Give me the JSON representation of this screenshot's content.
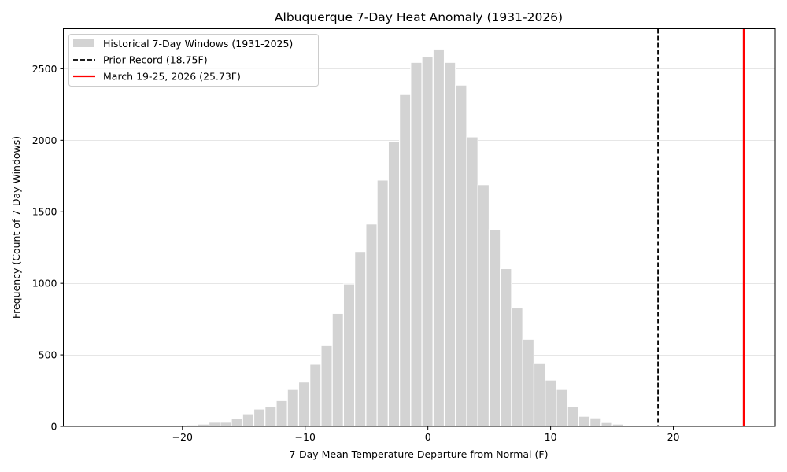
{
  "chart_data": {
    "type": "bar",
    "subtype": "histogram",
    "title": "Albuquerque 7-Day Heat Anomaly (1931-2026)",
    "xlabel": "7-Day Mean Temperature Departure from Normal (F)",
    "ylabel": "Frequency (Count of 7-Day Windows)",
    "xlim": [
      -29.7,
      28.3
    ],
    "ylim": [
      0,
      2780
    ],
    "xticks": [
      -20,
      -10,
      0,
      10,
      20
    ],
    "xtick_labels": [
      "−20",
      "−10",
      "0",
      "10",
      "20"
    ],
    "yticks": [
      0,
      500,
      1000,
      1500,
      2000,
      2500
    ],
    "ytick_labels": [
      "0",
      "500",
      "1000",
      "1500",
      "2000",
      "2500"
    ],
    "grid": {
      "y": true,
      "x": false
    },
    "legend_position": "upper left",
    "bin_start": -19.66,
    "bin_width": 0.913,
    "bin_centers": [
      -19.2,
      -18.29,
      -17.38,
      -16.46,
      -15.55,
      -14.64,
      -13.72,
      -12.81,
      -11.9,
      -10.98,
      -10.07,
      -9.16,
      -8.24,
      -7.33,
      -6.42,
      -5.5,
      -4.59,
      -3.68,
      -2.77,
      -1.85,
      -0.94,
      -0.03,
      0.89,
      1.8,
      2.71,
      3.63,
      4.54,
      5.45,
      6.37,
      7.28,
      8.19,
      9.11,
      10.02,
      10.93,
      11.85,
      12.76,
      13.67,
      14.59,
      15.5,
      16.41,
      17.33
    ],
    "series": [
      {
        "name": "Historical 7-Day Windows (1931-2025)",
        "color": "#d3d3d3",
        "edgecolor": "#ffffff",
        "values": [
          10,
          16,
          29,
          29,
          55,
          88,
          121,
          140,
          180,
          258,
          310,
          435,
          565,
          790,
          995,
          1223,
          1415,
          1722,
          1991,
          2320,
          2545,
          2584,
          2638,
          2545,
          2386,
          2024,
          1690,
          1377,
          1103,
          828,
          609,
          439,
          324,
          258,
          137,
          71,
          60,
          27,
          16,
          5,
          4
        ]
      }
    ],
    "vlines": [
      {
        "name": "Prior Record (18.75F)",
        "x": 18.75,
        "color": "#000000",
        "style": "dashed"
      },
      {
        "name": "March 19-25, 2026 (25.73F)",
        "x": 25.73,
        "color": "#ff0000",
        "style": "solid"
      }
    ],
    "legend": [
      {
        "label": "Historical 7-Day Windows (1931-2025)",
        "kind": "patch",
        "color": "#d3d3d3"
      },
      {
        "label": "Prior Record (18.75F)",
        "kind": "dashed-line",
        "color": "#000000"
      },
      {
        "label": "March 19-25, 2026 (25.73F)",
        "kind": "solid-line",
        "color": "#ff0000"
      }
    ]
  }
}
